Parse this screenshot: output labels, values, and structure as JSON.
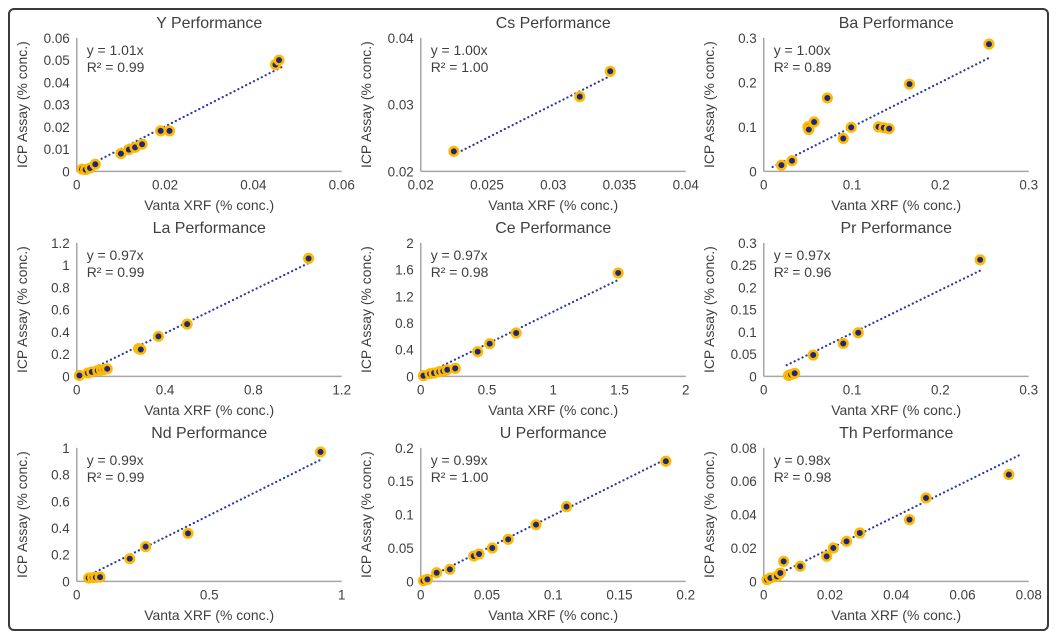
{
  "figure": {
    "background": "#ffffff",
    "border_color": "#3a3a3a"
  },
  "styles": {
    "text_color": "#3f3f3f",
    "axis_color": "#a6a6a6",
    "point_fill": "#1f2878",
    "point_ring": "#ffb900",
    "trend_color": "#2b3a9e"
  },
  "chart_data": [
    {
      "id": "y",
      "type": "scatter",
      "title": "Y Performance",
      "equation": "y = 1.01x",
      "r_squared": "R² = 0.99",
      "slope": 1.01,
      "xlabel": "Vanta XRF (% conc.)",
      "ylabel": "ICP Assay (% conc.)",
      "xlim": [
        0,
        0.06
      ],
      "ylim": [
        0,
        0.06
      ],
      "xticks": [
        0,
        0.02,
        0.04,
        0.06
      ],
      "yticks": [
        0,
        0.01,
        0.02,
        0.03,
        0.04,
        0.05,
        0.06
      ],
      "trend_x": [
        0.0012,
        0.047
      ],
      "points": [
        [
          0.0012,
          0.001
        ],
        [
          0.002,
          0.0008
        ],
        [
          0.003,
          0.0015
        ],
        [
          0.0042,
          0.0032
        ],
        [
          0.01,
          0.008
        ],
        [
          0.0118,
          0.0098
        ],
        [
          0.0132,
          0.0108
        ],
        [
          0.0148,
          0.0122
        ],
        [
          0.019,
          0.0182
        ],
        [
          0.021,
          0.0182
        ],
        [
          0.045,
          0.048
        ],
        [
          0.0458,
          0.05
        ]
      ]
    },
    {
      "id": "cs",
      "type": "scatter",
      "title": "Cs Performance",
      "equation": "y = 1.00x",
      "r_squared": "R² = 1.00",
      "slope": 1.0,
      "xlabel": "Vanta XRF (% conc.)",
      "ylabel": "ICP Assay (% conc.)",
      "xlim": [
        0.02,
        0.04
      ],
      "ylim": [
        0.02,
        0.04
      ],
      "xticks": [
        0.02,
        0.025,
        0.03,
        0.035,
        0.04
      ],
      "yticks": [
        0.02,
        0.03,
        0.04
      ],
      "trend_x": [
        0.0225,
        0.0345
      ],
      "points": [
        [
          0.0225,
          0.023
        ],
        [
          0.032,
          0.0312
        ],
        [
          0.0343,
          0.035
        ]
      ]
    },
    {
      "id": "ba",
      "type": "scatter",
      "title": "Ba Performance",
      "equation": "y = 1.00x",
      "r_squared": "R² = 0.89",
      "slope": 1.0,
      "xlabel": "Vanta XRF (% conc.)",
      "ylabel": "ICP Assay (% conc.)",
      "xlim": [
        0,
        0.3
      ],
      "ylim": [
        0,
        0.3
      ],
      "xticks": [
        0,
        0.1,
        0.2,
        0.3
      ],
      "yticks": [
        0,
        0.1,
        0.2,
        0.3
      ],
      "trend_x": [
        0.01,
        0.258
      ],
      "points": [
        [
          0.02,
          0.014
        ],
        [
          0.032,
          0.024
        ],
        [
          0.05,
          0.1
        ],
        [
          0.051,
          0.094
        ],
        [
          0.057,
          0.111
        ],
        [
          0.072,
          0.165
        ],
        [
          0.09,
          0.074
        ],
        [
          0.099,
          0.099
        ],
        [
          0.13,
          0.1
        ],
        [
          0.136,
          0.098
        ],
        [
          0.142,
          0.096
        ],
        [
          0.165,
          0.196
        ],
        [
          0.255,
          0.286
        ]
      ]
    },
    {
      "id": "la",
      "type": "scatter",
      "title": "La Performance",
      "equation": "y = 0.97x",
      "r_squared": "R² = 0.99",
      "slope": 0.97,
      "xlabel": "Vanta XRF (% conc.)",
      "ylabel": "ICP Assay (% conc.)",
      "xlim": [
        0,
        1.2
      ],
      "ylim": [
        0,
        1.2
      ],
      "xticks": [
        0,
        0.4,
        0.8,
        1.2
      ],
      "yticks": [
        0,
        0.2,
        0.4,
        0.6,
        0.8,
        1,
        1.2
      ],
      "trend_x": [
        0.012,
        1.058
      ],
      "points": [
        [
          0.012,
          0.008
        ],
        [
          0.05,
          0.03
        ],
        [
          0.068,
          0.04
        ],
        [
          0.095,
          0.052
        ],
        [
          0.112,
          0.058
        ],
        [
          0.125,
          0.062
        ],
        [
          0.138,
          0.068
        ],
        [
          0.28,
          0.25
        ],
        [
          0.29,
          0.242
        ],
        [
          0.37,
          0.36
        ],
        [
          0.5,
          0.47
        ],
        [
          1.05,
          1.06
        ]
      ]
    },
    {
      "id": "ce",
      "type": "scatter",
      "title": "Ce Performance",
      "equation": "y = 0.97x",
      "r_squared": "R² = 0.98",
      "slope": 0.97,
      "xlabel": "Vanta XRF (% conc.)",
      "ylabel": "ICP Assay (% conc.)",
      "xlim": [
        0,
        2
      ],
      "ylim": [
        0,
        2
      ],
      "xticks": [
        0,
        0.5,
        1,
        1.5,
        2
      ],
      "yticks": [
        0,
        0.4,
        0.8,
        1.2,
        1.6,
        2
      ],
      "trend_x": [
        0.02,
        1.5
      ],
      "points": [
        [
          0.02,
          0.01
        ],
        [
          0.07,
          0.04
        ],
        [
          0.1,
          0.05
        ],
        [
          0.14,
          0.07
        ],
        [
          0.17,
          0.08
        ],
        [
          0.2,
          0.1
        ],
        [
          0.26,
          0.12
        ],
        [
          0.43,
          0.37
        ],
        [
          0.52,
          0.49
        ],
        [
          0.72,
          0.65
        ],
        [
          1.49,
          1.55
        ]
      ]
    },
    {
      "id": "pr",
      "type": "scatter",
      "title": "Pr Performance",
      "equation": "y = 0.97x",
      "r_squared": "R² = 0.96",
      "slope": 0.97,
      "xlabel": "Vanta XRF (% conc.)",
      "ylabel": "ICP Assay (% conc.)",
      "xlim": [
        0,
        0.3
      ],
      "ylim": [
        0,
        0.3
      ],
      "xticks": [
        0,
        0.1,
        0.2,
        0.3
      ],
      "yticks": [
        0,
        0.05,
        0.1,
        0.15,
        0.2,
        0.25,
        0.3
      ],
      "trend_x": [
        0.026,
        0.248
      ],
      "points": [
        [
          0.028,
          0.002
        ],
        [
          0.031,
          0.004
        ],
        [
          0.035,
          0.007
        ],
        [
          0.056,
          0.048
        ],
        [
          0.09,
          0.074
        ],
        [
          0.107,
          0.098
        ],
        [
          0.245,
          0.262
        ]
      ]
    },
    {
      "id": "nd",
      "type": "scatter",
      "title": "Nd Performance",
      "equation": "y = 0.99x",
      "r_squared": "R² = 0.99",
      "slope": 0.99,
      "xlabel": "Vanta XRF (% conc.)",
      "ylabel": "ICP Assay (% conc.)",
      "xlim": [
        0,
        1
      ],
      "ylim": [
        0,
        1
      ],
      "xticks": [
        0,
        0.5,
        1
      ],
      "yticks": [
        0,
        0.2,
        0.4,
        0.6,
        0.8,
        1
      ],
      "trend_x": [
        0.042,
        0.928
      ],
      "points": [
        [
          0.045,
          0.025
        ],
        [
          0.06,
          0.028
        ],
        [
          0.072,
          0.03
        ],
        [
          0.088,
          0.032
        ],
        [
          0.2,
          0.17
        ],
        [
          0.26,
          0.26
        ],
        [
          0.42,
          0.36
        ],
        [
          0.92,
          0.97
        ]
      ]
    },
    {
      "id": "u",
      "type": "scatter",
      "title": "U Performance",
      "equation": "y = 0.99x",
      "r_squared": "R² = 1.00",
      "slope": 0.99,
      "xlabel": "Vanta XRF (% conc.)",
      "ylabel": "ICP Assay (% conc.)",
      "xlim": [
        0,
        0.2
      ],
      "ylim": [
        0,
        0.2
      ],
      "xticks": [
        0,
        0.05,
        0.1,
        0.15,
        0.2
      ],
      "yticks": [
        0,
        0.05,
        0.1,
        0.15,
        0.2
      ],
      "trend_x": [
        0.002,
        0.186
      ],
      "points": [
        [
          0.002,
          0.001
        ],
        [
          0.005,
          0.003
        ],
        [
          0.012,
          0.013
        ],
        [
          0.022,
          0.018
        ],
        [
          0.04,
          0.038
        ],
        [
          0.044,
          0.041
        ],
        [
          0.054,
          0.05
        ],
        [
          0.066,
          0.063
        ],
        [
          0.087,
          0.085
        ],
        [
          0.11,
          0.112
        ],
        [
          0.185,
          0.18
        ]
      ]
    },
    {
      "id": "th",
      "type": "scatter",
      "title": "Th Performance",
      "equation": "y = 0.98x",
      "r_squared": "R² = 0.98",
      "slope": 0.98,
      "xlabel": "Vanta XRF (% conc.)",
      "ylabel": "ICP Assay (% conc.)",
      "xlim": [
        0,
        0.08
      ],
      "ylim": [
        0,
        0.08
      ],
      "xticks": [
        0,
        0.02,
        0.04,
        0.06,
        0.08
      ],
      "yticks": [
        0,
        0.02,
        0.04,
        0.06,
        0.08
      ],
      "trend_x": [
        0.001,
        0.078
      ],
      "points": [
        [
          0.001,
          0.001
        ],
        [
          0.002,
          0.002
        ],
        [
          0.004,
          0.003
        ],
        [
          0.005,
          0.005
        ],
        [
          0.006,
          0.012
        ],
        [
          0.011,
          0.009
        ],
        [
          0.019,
          0.015
        ],
        [
          0.021,
          0.02
        ],
        [
          0.025,
          0.024
        ],
        [
          0.029,
          0.029
        ],
        [
          0.044,
          0.037
        ],
        [
          0.049,
          0.05
        ],
        [
          0.074,
          0.064
        ]
      ]
    }
  ]
}
